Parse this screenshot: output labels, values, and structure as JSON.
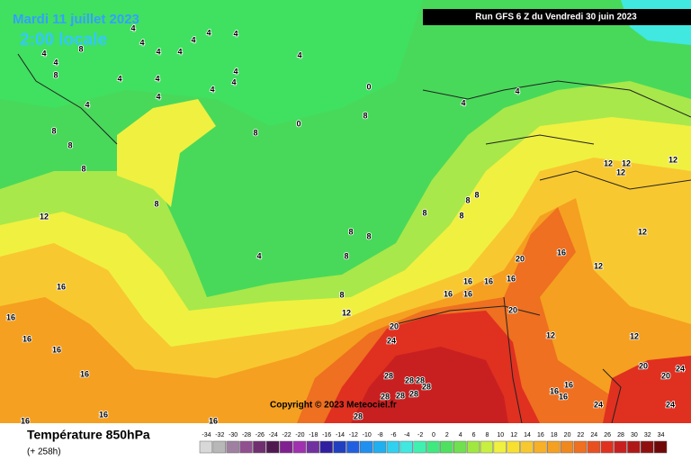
{
  "title_date": "Mardi 11 juillet 2023",
  "title_time": "2:00 locale",
  "run": "Run GFS 6 Z du Vendredi 30 juin 2023",
  "copyright": "Copyright © 2023 Meteociel.fr",
  "variable": "Température 850hPa",
  "lead": "(+ 258h)",
  "scale": {
    "values": [
      -34,
      -32,
      -30,
      -28,
      -26,
      -24,
      -22,
      -20,
      -18,
      -16,
      -14,
      -12,
      -10,
      -8,
      -6,
      -4,
      -2,
      0,
      2,
      4,
      6,
      8,
      10,
      12,
      14,
      16,
      18,
      20,
      22,
      24,
      26,
      28,
      30,
      32,
      34
    ],
    "colors": [
      "#d8d8d8",
      "#b8b8b8",
      "#a080a0",
      "#905090",
      "#703070",
      "#501850",
      "#802090",
      "#a030b0",
      "#7030a0",
      "#3020a0",
      "#2040c0",
      "#2060e0",
      "#2090f0",
      "#20b0f0",
      "#30d0f0",
      "#40e8e0",
      "#40f0b0",
      "#40e880",
      "#50e060",
      "#70e050",
      "#a0e840",
      "#c8f040",
      "#f0f040",
      "#f8e030",
      "#f8c830",
      "#f8b028",
      "#f5a020",
      "#f08820",
      "#ee7020",
      "#e85020",
      "#e03020",
      "#c82020",
      "#b01818",
      "#901010",
      "#700808"
    ]
  },
  "contour_labels": [
    4,
    4,
    4,
    4,
    4,
    4,
    4,
    4,
    4,
    4,
    4,
    4,
    4,
    4,
    4,
    4,
    4,
    0,
    0,
    8,
    8,
    8,
    8,
    8,
    8,
    8,
    8,
    8,
    8,
    8,
    8,
    8,
    8,
    8,
    8,
    4,
    4,
    4,
    12,
    12,
    12,
    12,
    12,
    12,
    12,
    12,
    12,
    12,
    16,
    16,
    16,
    16,
    16,
    16,
    16,
    16,
    16,
    16,
    16,
    16,
    16,
    16,
    16,
    16,
    16,
    20,
    20,
    20,
    20,
    20,
    24,
    24,
    24,
    24,
    28,
    28,
    28,
    28,
    28,
    28,
    28,
    28
  ]
}
